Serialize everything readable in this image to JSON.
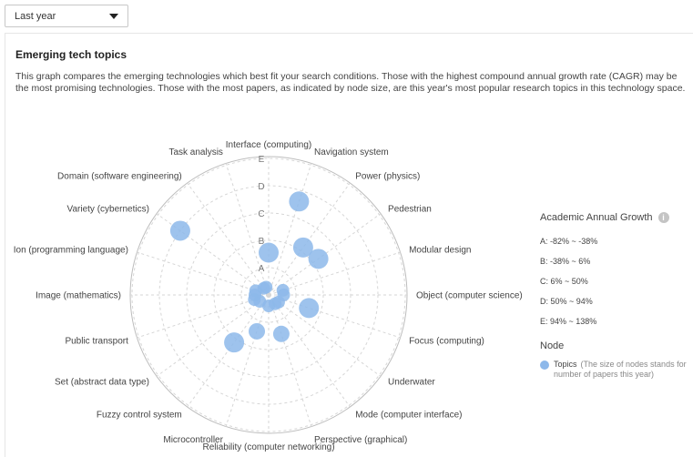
{
  "filter": {
    "selected": "Last year"
  },
  "panel": {
    "title": "Emerging tech topics",
    "description": "This graph compares the emerging technologies which best fit your search conditions. Those with the highest compound annual growth rate (CAGR) may be the most promising technologies. Those with the most papers, as indicated by node size, are this year's most popular research topics in this technology space."
  },
  "chart_data": {
    "type": "scatter",
    "subtype": "polar-radar",
    "axes": [
      "Interface (computing)",
      "Navigation system",
      "Power (physics)",
      "Pedestrian",
      "Modular design",
      "Object (computer science)",
      "Focus (computing)",
      "Underwater",
      "Mode (computer interface)",
      "Perspective (graphical)",
      "Reliability (computer networking)",
      "Microcontroller",
      "Fuzzy control system",
      "Set (abstract data type)",
      "Public transport",
      "Image (mathematics)",
      "Ion (programming language)",
      "Variety (cybernetics)",
      "Domain (software engineering)",
      "Task analysis"
    ],
    "rings": [
      "A",
      "B",
      "C",
      "D",
      "E"
    ],
    "points": [
      {
        "axis": "Interface (computing)",
        "ring": 1.55,
        "size": 4
      },
      {
        "axis": "Navigation system",
        "ring": 3.6,
        "size": 4
      },
      {
        "axis": "Power (physics)",
        "ring": 2.15,
        "size": 4
      },
      {
        "axis": "Pedestrian",
        "ring": 2.25,
        "size": 4
      },
      {
        "axis": "Modular design",
        "ring": 0.55,
        "size": 2
      },
      {
        "axis": "Object (computer science)",
        "ring": 0.55,
        "size": 2
      },
      {
        "axis": "Focus (computing)",
        "ring": 1.55,
        "size": 4
      },
      {
        "axis": "Underwater",
        "ring": 0.45,
        "size": 2
      },
      {
        "axis": "Mode (computer interface)",
        "ring": 0.4,
        "size": 2
      },
      {
        "axis": "Perspective (graphical)",
        "ring": 1.5,
        "size": 3
      },
      {
        "axis": "Reliability (computer networking)",
        "ring": 0.4,
        "size": 2
      },
      {
        "axis": "Microcontroller",
        "ring": 1.4,
        "size": 3
      },
      {
        "axis": "Fuzzy control system",
        "ring": 2.15,
        "size": 4
      },
      {
        "axis": "Set (abstract data type)",
        "ring": 0.4,
        "size": 2
      },
      {
        "axis": "Public transport",
        "ring": 0.55,
        "size": 2
      },
      {
        "axis": "Image (mathematics)",
        "ring": 0.5,
        "size": 2
      },
      {
        "axis": "Ion (programming language)",
        "ring": 0.5,
        "size": 2
      },
      {
        "axis": "Variety (cybernetics)",
        "ring": 4.0,
        "size": 4
      },
      {
        "axis": "Domain (software engineering)",
        "ring": 0.3,
        "size": 2
      },
      {
        "axis": "Task analysis",
        "ring": 0.3,
        "size": 2
      }
    ],
    "point_color": "#8db8ea",
    "grid": true,
    "legend_position": "right"
  },
  "legend": {
    "title": "Academic Annual Growth",
    "ranges": [
      "A: -82%  ~  -38%",
      "B: -38%  ~  6%",
      "C: 6%  ~  50%",
      "D: 50%  ~  94%",
      "E: 94%  ~  138%"
    ],
    "node_title": "Node",
    "node_item_name": "Topics",
    "node_item_note": "(The size of nodes stands for number of papers this year)"
  }
}
